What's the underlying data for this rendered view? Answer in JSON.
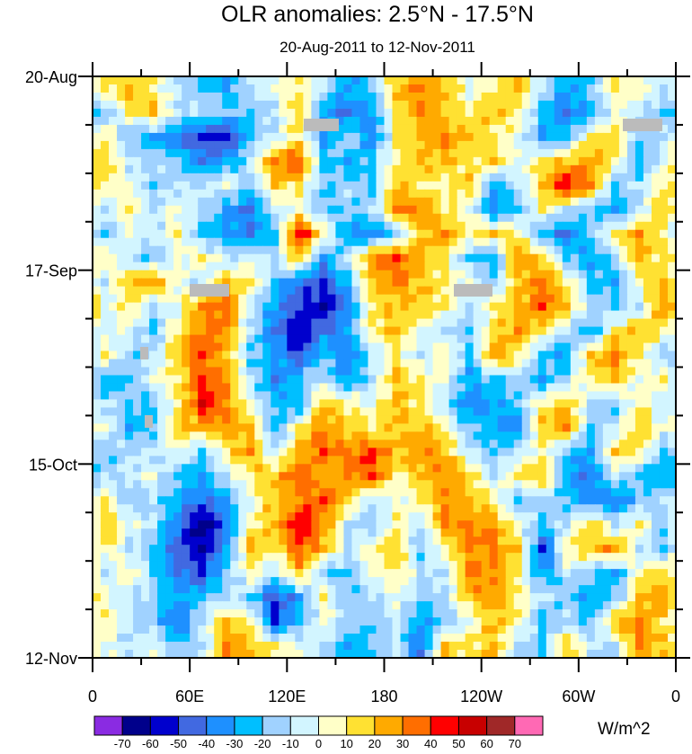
{
  "chart_data": {
    "type": "heatmap",
    "title": "OLR anomalies: 2.5°N - 17.5°N",
    "subtitle": "20-Aug-2011 to 12-Nov-2011",
    "units_label": "W/m^2",
    "x_axis": {
      "range_deg_east": [
        0,
        360
      ],
      "tick_labels": [
        "0",
        "60E",
        "120E",
        "180",
        "120W",
        "60W",
        "0"
      ],
      "major_step_deg": 60,
      "minor_step_deg": 30
    },
    "y_axis": {
      "tick_labels": [
        "20-Aug",
        "17-Sep",
        "15-Oct",
        "12-Nov"
      ],
      "range_days": [
        0,
        84
      ],
      "major_step_days": 28,
      "minor_step_days": 7,
      "direction": "time increases downward"
    },
    "grid_lon_step_deg": 15,
    "grid_time_step_days": 3.5,
    "colorbar": {
      "levels": [
        -70,
        -60,
        -50,
        -40,
        -30,
        -20,
        -10,
        0,
        10,
        20,
        30,
        40,
        50,
        60,
        70
      ],
      "level_labels": [
        "-70",
        "-60",
        "-50",
        "-40",
        "-30",
        "-20",
        "-10",
        "0",
        "10",
        "20",
        "30",
        "40",
        "50",
        "60",
        "70"
      ],
      "colors": [
        "#8a2be2",
        "#00008b",
        "#0000cd",
        "#4169e1",
        "#1e90ff",
        "#00bfff",
        "#a0d2ff",
        "#d2f5ff",
        "#ffffc8",
        "#ffe132",
        "#ffaa00",
        "#ff6e00",
        "#ff0000",
        "#c80000",
        "#a02828",
        "#ff69b4"
      ]
    },
    "missing_color": "#bbbbbb",
    "values": [
      [
        10,
        20,
        10,
        -10,
        -20,
        -30,
        -10,
        0,
        10,
        -10,
        -30,
        -20,
        20,
        30,
        20,
        0,
        10,
        20,
        -10,
        -30,
        -20,
        10,
        5,
        -10
      ],
      [
        -20,
        10,
        20,
        -10,
        -10,
        -20,
        -20,
        -10,
        20,
        -30,
        -40,
        -30,
        10,
        30,
        20,
        10,
        20,
        10,
        -20,
        -40,
        -30,
        0,
        -10,
        -20
      ],
      [
        10,
        -20,
        -30,
        -40,
        -50,
        -60,
        -20,
        -10,
        10,
        -30,
        -10,
        -40,
        10,
        20,
        30,
        20,
        10,
        0,
        -30,
        -20,
        10,
        20,
        -20,
        -10
      ],
      [
        20,
        -10,
        -10,
        -20,
        -40,
        -30,
        -10,
        30,
        40,
        -20,
        -30,
        -20,
        10,
        20,
        20,
        10,
        20,
        0,
        10,
        20,
        30,
        10,
        -30,
        0
      ],
      [
        10,
        0,
        -20,
        -10,
        -10,
        0,
        -20,
        20,
        10,
        -20,
        -10,
        -20,
        20,
        10,
        10,
        20,
        -30,
        -10,
        20,
        50,
        30,
        -20,
        -10,
        10
      ],
      [
        -10,
        10,
        -10,
        0,
        -10,
        -30,
        -40,
        -10,
        0,
        -20,
        -20,
        -10,
        30,
        30,
        10,
        0,
        -40,
        -20,
        10,
        -10,
        -20,
        -30,
        -10,
        20
      ],
      [
        -20,
        0,
        -10,
        10,
        -20,
        -30,
        -40,
        -20,
        50,
        10,
        -30,
        -40,
        -20,
        20,
        30,
        10,
        20,
        10,
        -30,
        -40,
        -20,
        10,
        30,
        10
      ],
      [
        10,
        -10,
        -20,
        0,
        10,
        -10,
        0,
        -10,
        20,
        -30,
        -10,
        30,
        40,
        20,
        10,
        -20,
        -30,
        30,
        20,
        -20,
        -30,
        -10,
        20,
        10
      ],
      [
        -10,
        20,
        30,
        0,
        -10,
        20,
        10,
        -20,
        -40,
        -50,
        -20,
        20,
        30,
        20,
        10,
        0,
        -20,
        20,
        30,
        10,
        -20,
        -30,
        10,
        20
      ],
      [
        0,
        10,
        -10,
        0,
        30,
        40,
        -10,
        -30,
        -50,
        -60,
        -40,
        10,
        20,
        20,
        10,
        -10,
        10,
        20,
        40,
        20,
        -10,
        -20,
        -10,
        30
      ],
      [
        -10,
        0,
        -20,
        10,
        30,
        30,
        -10,
        -40,
        -60,
        -40,
        -30,
        10,
        20,
        0,
        -10,
        -20,
        10,
        30,
        10,
        -10,
        -30,
        10,
        20,
        10
      ],
      [
        10,
        -20,
        -10,
        20,
        40,
        20,
        -20,
        -30,
        -50,
        -20,
        -40,
        -10,
        10,
        -10,
        10,
        -20,
        30,
        10,
        -20,
        -30,
        20,
        30,
        10,
        -20
      ],
      [
        -30,
        -20,
        0,
        10,
        40,
        30,
        -10,
        -40,
        -20,
        -10,
        -30,
        -10,
        20,
        10,
        0,
        -30,
        -20,
        -10,
        -30,
        -10,
        10,
        20,
        0,
        10
      ],
      [
        -10,
        -20,
        -20,
        10,
        50,
        30,
        0,
        -20,
        -30,
        20,
        10,
        0,
        20,
        10,
        -10,
        -40,
        -30,
        -20,
        10,
        20,
        -10,
        -20,
        10,
        -10
      ],
      [
        0,
        -30,
        -20,
        20,
        20,
        30,
        20,
        -30,
        10,
        30,
        20,
        10,
        20,
        20,
        10,
        -20,
        -30,
        -40,
        20,
        30,
        -20,
        -10,
        20,
        0
      ],
      [
        -20,
        -10,
        -10,
        0,
        -20,
        10,
        30,
        -10,
        20,
        40,
        30,
        40,
        20,
        30,
        20,
        -10,
        -20,
        -10,
        10,
        -20,
        -30,
        20,
        10,
        -20
      ],
      [
        -10,
        -10,
        0,
        -20,
        -30,
        -10,
        10,
        20,
        40,
        20,
        30,
        40,
        10,
        20,
        30,
        20,
        -10,
        10,
        20,
        -30,
        -40,
        -10,
        -20,
        -30
      ],
      [
        10,
        -20,
        -10,
        -30,
        -40,
        -30,
        0,
        20,
        30,
        40,
        20,
        -10,
        0,
        10,
        30,
        20,
        10,
        -20,
        -10,
        -20,
        -30,
        -40,
        -20,
        -10
      ],
      [
        20,
        0,
        -10,
        -40,
        -70,
        -40,
        10,
        20,
        50,
        30,
        -10,
        -20,
        10,
        -10,
        30,
        30,
        30,
        0,
        -20,
        -10,
        20,
        -10,
        10,
        -20
      ],
      [
        10,
        -10,
        -20,
        -50,
        -60,
        -30,
        20,
        10,
        40,
        20,
        -10,
        10,
        20,
        -20,
        10,
        30,
        30,
        20,
        -50,
        10,
        20,
        30,
        -10,
        -20
      ],
      [
        -10,
        10,
        -20,
        -40,
        -50,
        -20,
        10,
        -10,
        20,
        -20,
        -20,
        0,
        10,
        -10,
        -10,
        30,
        30,
        10,
        -30,
        -10,
        -20,
        -30,
        10,
        20
      ],
      [
        0,
        -10,
        -10,
        -30,
        -20,
        -10,
        -20,
        -50,
        -30,
        10,
        -20,
        -10,
        0,
        -20,
        -10,
        20,
        30,
        10,
        -10,
        -20,
        -30,
        -20,
        20,
        30
      ],
      [
        10,
        -10,
        -20,
        -40,
        -10,
        20,
        10,
        -50,
        -20,
        0,
        -10,
        -20,
        -10,
        -30,
        -20,
        0,
        20,
        10,
        -20,
        -10,
        -20,
        20,
        30,
        10
      ],
      [
        0,
        -10,
        0,
        -20,
        -10,
        30,
        20,
        10,
        0,
        -10,
        -30,
        -20,
        -10,
        -40,
        20,
        10,
        20,
        -10,
        -20,
        20,
        -10,
        -10,
        30,
        20
      ]
    ]
  }
}
